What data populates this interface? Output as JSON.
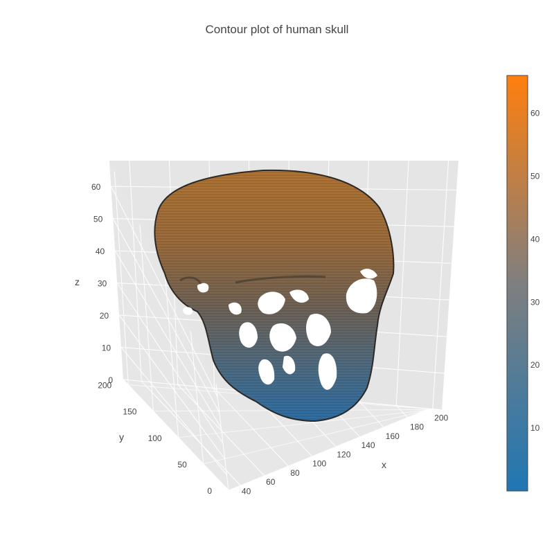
{
  "chart_data": {
    "type": "isosurface-3d",
    "title": "Contour plot of human skull",
    "x_axis": {
      "label": "x",
      "ticks": [
        40,
        60,
        80,
        100,
        120,
        140,
        160,
        180,
        200
      ],
      "range": [
        30,
        205
      ]
    },
    "y_axis": {
      "label": "y",
      "ticks": [
        0,
        50,
        100,
        150,
        200
      ],
      "range": [
        0,
        210
      ]
    },
    "z_axis": {
      "label": "z",
      "ticks": [
        0,
        10,
        20,
        30,
        40,
        50,
        60
      ],
      "range": [
        0,
        68
      ]
    },
    "colorbar": {
      "ticks": [
        10,
        20,
        30,
        40,
        50,
        60
      ],
      "range": [
        0,
        66
      ],
      "colorscale": [
        "#1f77b4",
        "#7f7f7f",
        "#ff7f0e"
      ]
    },
    "scene": {
      "background": "#e5e5e5",
      "grid_color": "#ffffff",
      "grid": true
    }
  }
}
